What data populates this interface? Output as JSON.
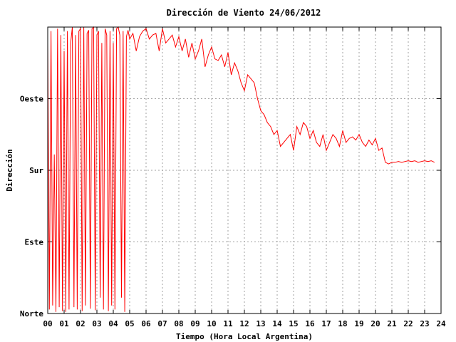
{
  "chart_data": {
    "type": "line",
    "title": "Dirección de Viento 24/06/2012",
    "xlabel": "Tiempo (Hora Local Argentina)",
    "ylabel": "Dirección",
    "xlim": [
      0,
      24
    ],
    "ylim": [
      0,
      360
    ],
    "x_ticks": [
      "00",
      "01",
      "02",
      "03",
      "04",
      "05",
      "06",
      "07",
      "08",
      "09",
      "10",
      "11",
      "12",
      "13",
      "14",
      "15",
      "16",
      "17",
      "18",
      "19",
      "20",
      "21",
      "22",
      "23",
      "24"
    ],
    "y_ticks": [
      {
        "value": 0,
        "label": "Norte"
      },
      {
        "value": 90,
        "label": "Este"
      },
      {
        "value": 180,
        "label": "Sur"
      },
      {
        "value": 270,
        "label": "Oeste"
      }
    ],
    "grid": true,
    "series": [
      {
        "name": "",
        "color": "#ff0000",
        "x": [
          0.0,
          0.1,
          0.2,
          0.3,
          0.4,
          0.5,
          0.6,
          0.7,
          0.8,
          0.9,
          1.0,
          1.1,
          1.2,
          1.3,
          1.4,
          1.5,
          1.6,
          1.7,
          1.8,
          1.9,
          2.0,
          2.1,
          2.2,
          2.3,
          2.4,
          2.5,
          2.6,
          2.7,
          2.8,
          2.9,
          3.0,
          3.1,
          3.2,
          3.3,
          3.4,
          3.5,
          3.6,
          3.7,
          3.8,
          3.9,
          4.0,
          4.1,
          4.2,
          4.3,
          4.4,
          4.5,
          4.6,
          4.7,
          4.8,
          4.9,
          5.0,
          5.2,
          5.4,
          5.6,
          5.8,
          6.0,
          6.2,
          6.4,
          6.6,
          6.8,
          7.0,
          7.2,
          7.4,
          7.6,
          7.8,
          8.0,
          8.2,
          8.4,
          8.6,
          8.8,
          9.0,
          9.2,
          9.4,
          9.6,
          9.8,
          10.0,
          10.2,
          10.4,
          10.6,
          10.8,
          11.0,
          11.2,
          11.4,
          11.6,
          11.8,
          12.0,
          12.2,
          12.4,
          12.6,
          12.8,
          13.0,
          13.2,
          13.4,
          13.6,
          13.8,
          14.0,
          14.2,
          14.4,
          14.6,
          14.8,
          15.0,
          15.2,
          15.4,
          15.6,
          15.8,
          16.0,
          16.2,
          16.4,
          16.6,
          16.8,
          17.0,
          17.2,
          17.4,
          17.6,
          17.8,
          18.0,
          18.2,
          18.4,
          18.6,
          18.8,
          19.0,
          19.2,
          19.4,
          19.6,
          19.8,
          20.0,
          20.2,
          20.4,
          20.6,
          20.8,
          21.0,
          21.2,
          21.4,
          21.6,
          21.8,
          22.0,
          22.2,
          22.4,
          22.6,
          22.8,
          23.0,
          23.2,
          23.4,
          23.6
        ],
        "values": [
          340,
          5,
          355,
          10,
          200,
          2,
          358,
          8,
          350,
          3,
          330,
          2,
          355,
          5,
          340,
          360,
          8,
          350,
          5,
          355,
          358,
          3,
          360,
          10,
          352,
          356,
          6,
          358,
          360,
          4,
          350,
          355,
          20,
          340,
          5,
          358,
          350,
          3,
          355,
          10,
          340,
          5,
          358,
          360,
          350,
          20,
          355,
          2,
          348,
          356,
          345,
          352,
          330,
          348,
          355,
          358,
          345,
          350,
          352,
          330,
          358,
          340,
          345,
          350,
          335,
          348,
          330,
          345,
          322,
          340,
          320,
          330,
          345,
          310,
          325,
          335,
          320,
          318,
          325,
          310,
          328,
          300,
          315,
          305,
          290,
          280,
          300,
          295,
          290,
          270,
          255,
          250,
          240,
          235,
          225,
          230,
          210,
          215,
          220,
          225,
          205,
          235,
          225,
          240,
          235,
          220,
          230,
          215,
          210,
          225,
          205,
          215,
          225,
          220,
          210,
          230,
          215,
          220,
          222,
          218,
          225,
          215,
          210,
          218,
          212,
          220,
          205,
          208,
          190,
          188,
          190,
          190,
          191,
          190,
          191,
          192,
          191,
          192,
          190,
          191,
          192,
          191,
          192,
          190
        ]
      }
    ]
  }
}
